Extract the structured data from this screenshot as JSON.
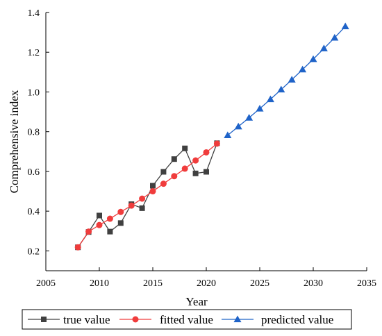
{
  "chart_data": {
    "type": "line",
    "xlabel": "Year",
    "ylabel": "Comprehensive index",
    "xlim": [
      2005,
      2035
    ],
    "ylim": [
      0.1,
      1.4
    ],
    "xticks": [
      2005,
      2010,
      2015,
      2020,
      2025,
      2030,
      2035
    ],
    "yticks": [
      0.2,
      0.4,
      0.6,
      0.8,
      1.0,
      1.2,
      1.4
    ],
    "xtick_labels": [
      "2005",
      "2010",
      "2015",
      "2020",
      "2025",
      "2030",
      "2035"
    ],
    "ytick_labels": [
      "0.2",
      "0.4",
      "0.6",
      "0.8",
      "1.0",
      "1.2",
      "1.4"
    ],
    "grid": false,
    "legend_position": "bottom",
    "series": [
      {
        "name": "true value",
        "color": "#404040",
        "marker": "square",
        "x": [
          2008,
          2009,
          2010,
          2011,
          2012,
          2013,
          2014,
          2015,
          2016,
          2017,
          2018,
          2019,
          2020,
          2021
        ],
        "y": [
          0.218,
          0.295,
          0.378,
          0.297,
          0.34,
          0.435,
          0.415,
          0.528,
          0.598,
          0.662,
          0.716,
          0.59,
          0.598,
          0.742
        ]
      },
      {
        "name": "fitted value",
        "color": "#f03c3c",
        "marker": "circle",
        "x": [
          2008,
          2009,
          2010,
          2011,
          2012,
          2013,
          2014,
          2015,
          2016,
          2017,
          2018,
          2019,
          2020,
          2021
        ],
        "y": [
          0.218,
          0.297,
          0.33,
          0.362,
          0.396,
          0.428,
          0.463,
          0.5,
          0.538,
          0.576,
          0.614,
          0.655,
          0.696,
          0.74
        ]
      },
      {
        "name": "predicted value",
        "color": "#1f63c8",
        "marker": "triangle",
        "x": [
          2022,
          2023,
          2024,
          2025,
          2026,
          2027,
          2028,
          2029,
          2030,
          2031,
          2032,
          2033
        ],
        "y": [
          0.782,
          0.826,
          0.87,
          0.916,
          0.963,
          1.012,
          1.062,
          1.113,
          1.165,
          1.219,
          1.273,
          1.33
        ]
      }
    ]
  }
}
